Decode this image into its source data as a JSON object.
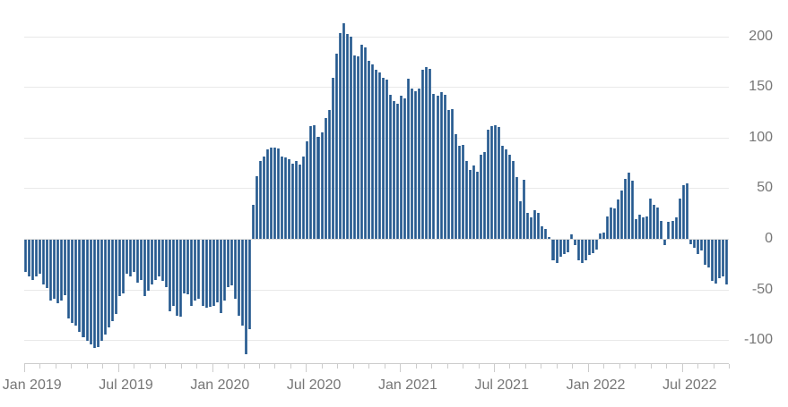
{
  "chart": {
    "title": "",
    "frequency": "weekly",
    "period": "Jan 2019 – Aug 2022",
    "colors": {
      "bar_fill": "#25588e",
      "bar_edge": "#6e93b6",
      "gridline": "#e9e9e9",
      "zero_line": "#dcdcdc",
      "axis_line": "#cccccc",
      "tick_label": "#767676"
    },
    "y_axis": {
      "side": "right",
      "tick_labels": [
        "200",
        "150",
        "100",
        "50",
        "0",
        "-50",
        "-100"
      ]
    },
    "x_axis": {
      "tick_unit": "month",
      "label_months": [
        "Jan 2019",
        "Jul 2019",
        "Jan 2020",
        "Jul 2020",
        "Jan 2021",
        "Jul 2021",
        "Jan 2022",
        "Jul 2022"
      ]
    }
  },
  "chart_data": {
    "type": "bar",
    "title": "",
    "xlabel": "",
    "ylabel": "",
    "x_start": "Jan 2019",
    "x_end": "Aug 2022",
    "x_frequency": "weekly",
    "legend": null,
    "grid": true,
    "yticks": [
      200,
      150,
      100,
      50,
      0,
      -50,
      -100
    ],
    "ylim": [
      -125,
      220
    ],
    "x_label_months": [
      "Jan 2019",
      "Jul 2019",
      "Jan 2020",
      "Jul 2020",
      "Jan 2021",
      "Jul 2021",
      "Jan 2022",
      "Jul 2022"
    ],
    "x_label_month_offsets": [
      0,
      6,
      12,
      18,
      24,
      30,
      36,
      42
    ],
    "total_months": 45,
    "values": [
      -32,
      -36,
      -40,
      -36,
      -34,
      -44,
      -48,
      -60,
      -58,
      -63,
      -60,
      -55,
      -78,
      -82,
      -85,
      -91,
      -96,
      -100,
      -103,
      -107,
      -106,
      -100,
      -94,
      -87,
      -80,
      -73,
      -56,
      -53,
      -34,
      -36,
      -32,
      -42,
      -40,
      -56,
      -50,
      -44,
      -40,
      -36,
      -41,
      -47,
      -71,
      -65,
      -75,
      -76,
      -53,
      -54,
      -65,
      -60,
      -58,
      -65,
      -67,
      -66,
      -65,
      -62,
      -72,
      -60,
      -47,
      -45,
      -58,
      -75,
      -85,
      -113,
      -88,
      34,
      62,
      77,
      81,
      88,
      90,
      90,
      89,
      81,
      80,
      79,
      74,
      77,
      73,
      81,
      96,
      111,
      112,
      101,
      105,
      119,
      127,
      159,
      183,
      203,
      213,
      202,
      200,
      181,
      180,
      192,
      189,
      176,
      172,
      167,
      164,
      159,
      157,
      142,
      136,
      133,
      141,
      139,
      158,
      148,
      146,
      148,
      167,
      170,
      168,
      143,
      141,
      145,
      142,
      127,
      128,
      103,
      92,
      93,
      77,
      68,
      72,
      66,
      83,
      86,
      108,
      111,
      112,
      110,
      92,
      88,
      83,
      77,
      61,
      37,
      58,
      26,
      21,
      28,
      26,
      12,
      10,
      2,
      -20,
      -23,
      -17,
      -14,
      -12,
      4,
      -5,
      -20,
      -23,
      -20,
      -15,
      -13,
      -10,
      5,
      6,
      22,
      31,
      30,
      39,
      48,
      59,
      65,
      57,
      19,
      24,
      21,
      22,
      40,
      34,
      31,
      18,
      -5,
      17,
      18,
      21,
      40,
      53,
      55,
      -4,
      -8,
      -14,
      -11,
      -25,
      -27,
      -41,
      -43,
      -38,
      -36,
      -44
    ]
  }
}
